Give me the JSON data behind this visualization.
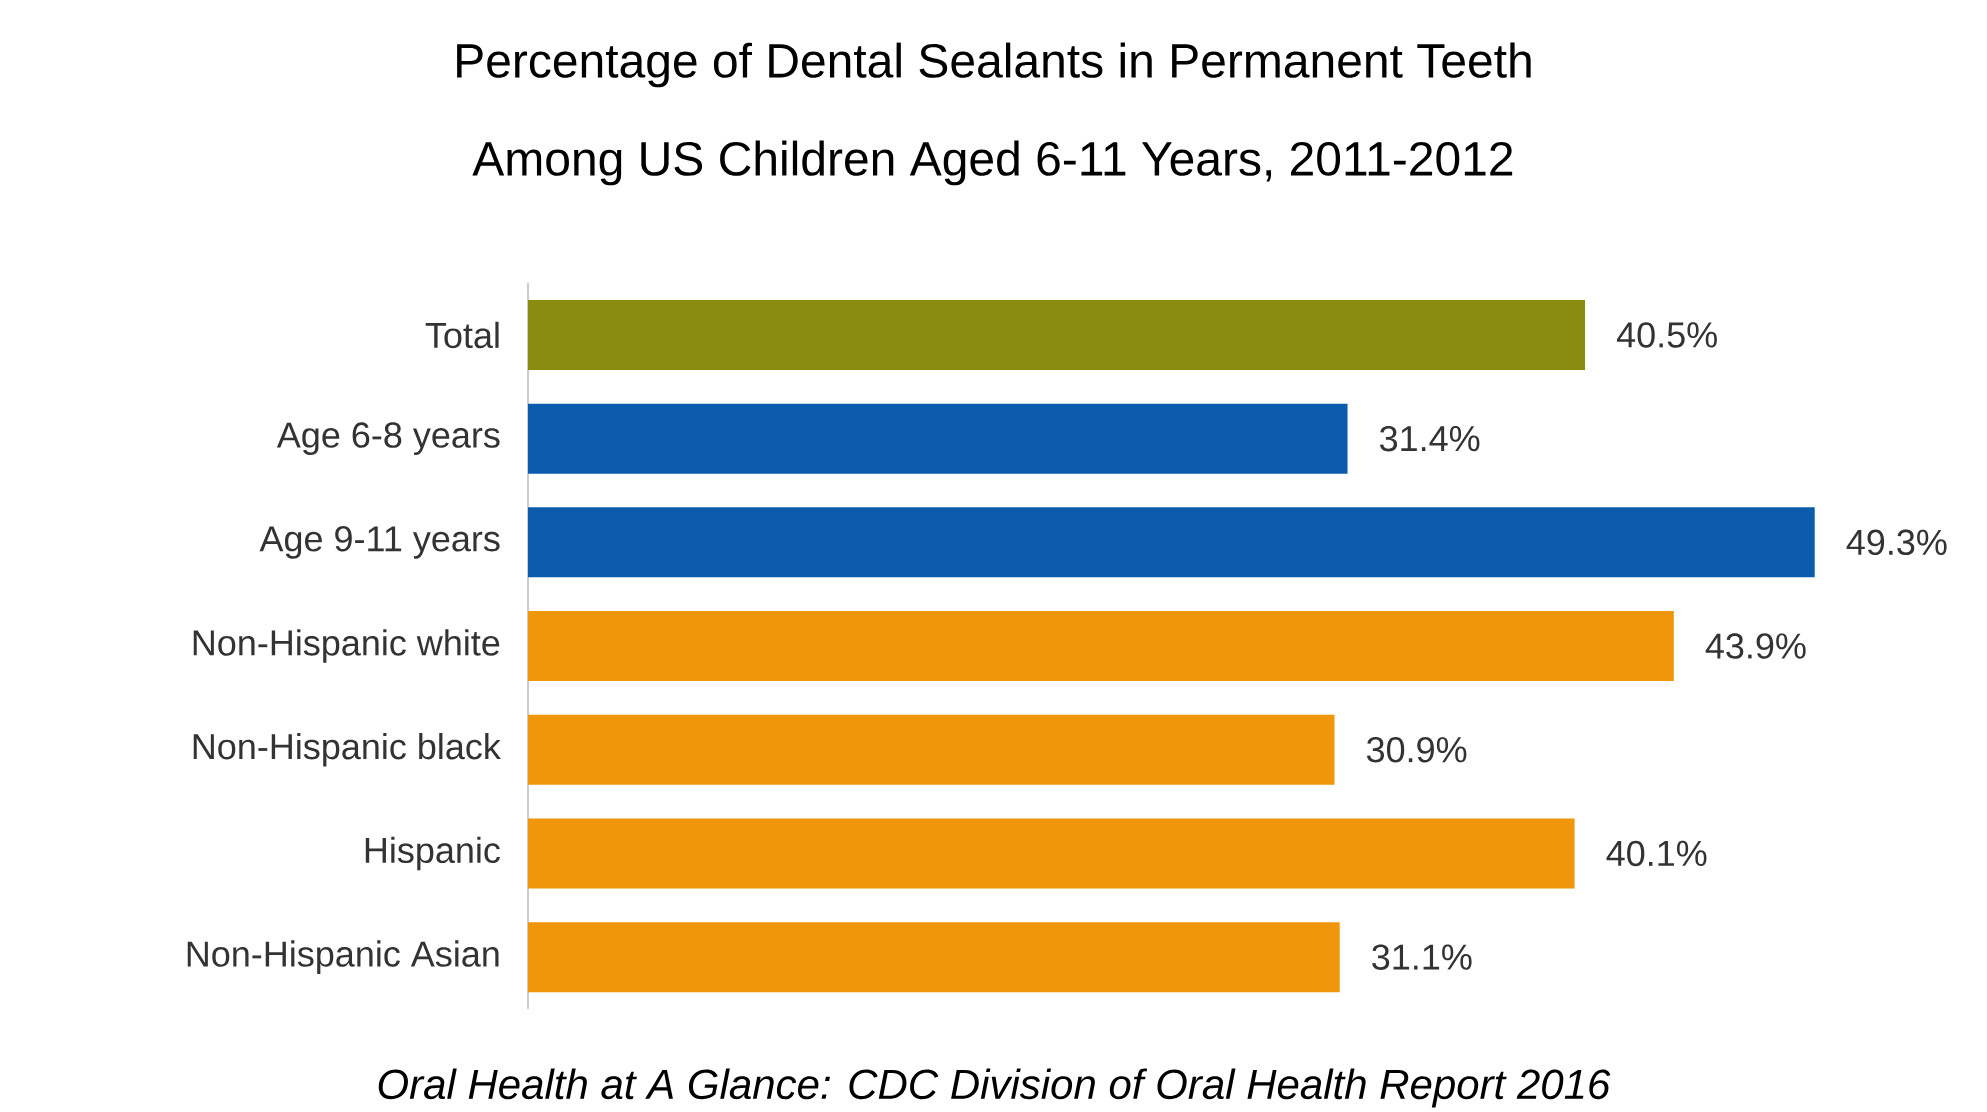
{
  "chart_data": {
    "type": "bar",
    "orientation": "horizontal",
    "title": "Percentage of Dental Sealants in Permanent Teeth Among US Children Aged 6-11 Years, 2011-2012",
    "categories": [
      "Total",
      "Age 6-8 years",
      "Age 9-11 years",
      "Non-Hispanic white",
      "Non-Hispanic black",
      "Hispanic",
      "Non-Hispanic Asian"
    ],
    "values": [
      40.5,
      31.4,
      49.3,
      43.9,
      30.9,
      40.1,
      31.1
    ],
    "value_labels": [
      "40.5%",
      "31.4%",
      "49.3%",
      "43.9%",
      "30.9%",
      "40.1%",
      "31.1%"
    ],
    "colors": [
      "#8a8c10",
      "#0b5cad",
      "#0b5cad",
      "#f0960a",
      "#f0960a",
      "#f0960a",
      "#f0960a"
    ],
    "annotations": [
      "*Oral Health at A Glance: CDC Division of Oral Health Report 2016*"
    ]
  }
}
